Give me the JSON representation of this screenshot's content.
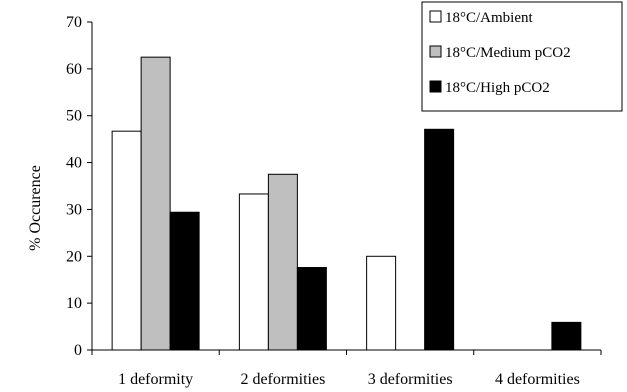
{
  "chart_data": {
    "type": "bar",
    "categories": [
      "1 deformity",
      "2 deformities",
      "3 deformities",
      "4 deformities"
    ],
    "series": [
      {
        "name": "18°C/Ambient",
        "color": "#ffffff",
        "values": [
          46.7,
          33.3,
          20.0,
          0
        ]
      },
      {
        "name": "18°C/Medium pCO2",
        "color": "#bfbfbf",
        "values": [
          62.5,
          37.5,
          0,
          0
        ]
      },
      {
        "name": "18°C/High pCO2",
        "color": "#000000",
        "values": [
          29.4,
          17.6,
          47.1,
          5.9
        ]
      }
    ],
    "xlabel": "",
    "ylabel": "% Occurence",
    "ylim": [
      0,
      70
    ],
    "yticks": [
      0,
      10,
      20,
      30,
      40,
      50,
      60,
      70
    ],
    "legend_position": "top-right",
    "grid": false
  }
}
